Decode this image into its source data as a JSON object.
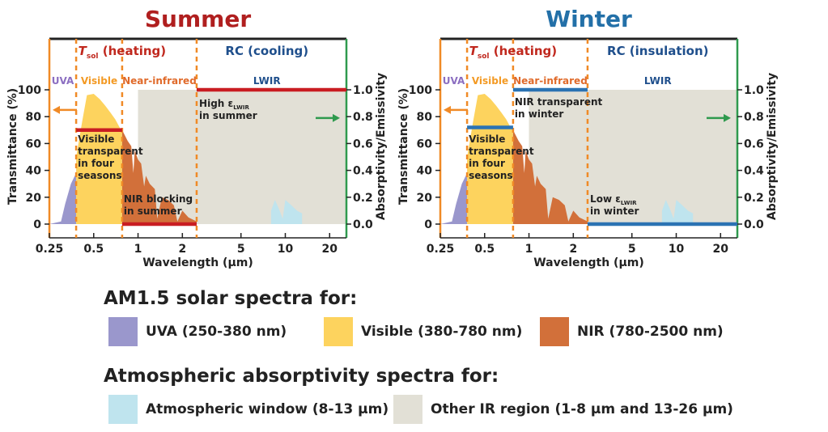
{
  "colors": {
    "uva": "#9a97cc",
    "visible": "#fdd35e",
    "nir": "#d2703a",
    "atm_window": "#bfe4ee",
    "other_ir": "#e2e0d6",
    "summer_title": "#b01f1f",
    "winter_title": "#2370a8",
    "tsol_label": "#c0281e",
    "rc_label": "#1f4f8c",
    "uva_label": "#8b6ec1",
    "visible_label": "#f39a24",
    "nir_label": "#e06a2a",
    "divider": "#f08a26",
    "right_axis": "#2f9a4e",
    "summer_line": "#c91d22",
    "winter_line": "#2b73b3"
  },
  "chart_data": [
    {
      "type": "area",
      "title": "Summer",
      "xlabel": "Wavelength (µm)",
      "ylabel": "Transmittance (%)",
      "y2label": "Absorptivity/Emissivity",
      "x_scale": "log",
      "xlim": [
        0.25,
        26
      ],
      "ylim": [
        0,
        100
      ],
      "y2lim": [
        0,
        1.0
      ],
      "x_ticks": [
        "0.25",
        "0.5",
        "1",
        "2",
        "5",
        "10",
        "20"
      ],
      "y_ticks": [
        "0",
        "20",
        "40",
        "60",
        "80",
        "100"
      ],
      "y2_ticks": [
        "0.0",
        "0.2",
        "0.4",
        "0.6",
        "0.8",
        "1.0"
      ],
      "sections": {
        "tsol": "T",
        "tsol_sub": "sol",
        "tsol_rest": "(heating)",
        "rc": "RC (cooling)"
      },
      "regions": [
        {
          "name": "UVA",
          "range": [
            0.25,
            0.38
          ]
        },
        {
          "name": "Visible",
          "range": [
            0.38,
            0.78
          ]
        },
        {
          "name": "Near-infrared",
          "range": [
            0.78,
            2.5
          ]
        },
        {
          "name": "LWIR",
          "range": [
            2.5,
            26
          ]
        }
      ],
      "series": [
        {
          "name": "UVA",
          "x": [
            0.25,
            0.3,
            0.32,
            0.35,
            0.38
          ],
          "y": [
            0,
            2,
            15,
            30,
            38
          ]
        },
        {
          "name": "Visible",
          "x": [
            0.38,
            0.42,
            0.45,
            0.5,
            0.55,
            0.6,
            0.65,
            0.7,
            0.75,
            0.78
          ],
          "y": [
            50,
            78,
            96,
            97,
            93,
            88,
            83,
            78,
            72,
            70
          ]
        },
        {
          "name": "NIR",
          "x": [
            0.78,
            0.85,
            0.9,
            0.93,
            0.95,
            1.0,
            1.05,
            1.1,
            1.13,
            1.2,
            1.3,
            1.35,
            1.45,
            1.6,
            1.75,
            1.85,
            2.0,
            2.2,
            2.5
          ],
          "y": [
            70,
            62,
            58,
            38,
            55,
            48,
            45,
            28,
            36,
            30,
            26,
            4,
            20,
            18,
            14,
            2,
            10,
            5,
            2
          ]
        },
        {
          "name": "Atmospheric window",
          "x": [
            8,
            8.5,
            9,
            9.6,
            10,
            11,
            12,
            13
          ],
          "y": [
            10,
            18,
            12,
            4,
            18,
            14,
            10,
            8
          ]
        },
        {
          "name": "Other IR region",
          "x": [
            1,
            2,
            3,
            5,
            7,
            8,
            13,
            16,
            20,
            26
          ],
          "y": [
            100,
            100,
            100,
            100,
            100,
            100,
            100,
            100,
            100,
            100
          ]
        }
      ],
      "property_lines": [
        {
          "range": [
            0.38,
            0.78
          ],
          "value": 0.7
        },
        {
          "range": [
            0.78,
            2.5
          ],
          "value": 0.0
        },
        {
          "range": [
            2.5,
            26
          ],
          "value": 1.0
        }
      ],
      "annotations": {
        "visible": [
          "Visible",
          "transparent",
          "in four",
          "seasons"
        ],
        "nir": [
          "NIR blocking",
          "in summer"
        ],
        "lwir_pre": "High ε",
        "lwir_sub": "LWIR",
        "lwir_post": "in summer"
      }
    },
    {
      "type": "area",
      "title": "Winter",
      "xlabel": "Wavelength (µm)",
      "ylabel": "Transmittance (%)",
      "y2label": "Absorptivity/Emissivity",
      "x_scale": "log",
      "xlim": [
        0.25,
        26
      ],
      "ylim": [
        0,
        100
      ],
      "y2lim": [
        0,
        1.0
      ],
      "x_ticks": [
        "0.25",
        "0.5",
        "1",
        "2",
        "5",
        "10",
        "20"
      ],
      "y_ticks": [
        "0",
        "20",
        "40",
        "60",
        "80",
        "100"
      ],
      "y2_ticks": [
        "0.0",
        "0.2",
        "0.4",
        "0.6",
        "0.8",
        "1.0"
      ],
      "sections": {
        "tsol": "T",
        "tsol_sub": "sol",
        "tsol_rest": "(heating)",
        "rc": "RC (insulation)"
      },
      "regions": [
        {
          "name": "UVA",
          "range": [
            0.25,
            0.38
          ]
        },
        {
          "name": "Visible",
          "range": [
            0.38,
            0.78
          ]
        },
        {
          "name": "Near-infrared",
          "range": [
            0.78,
            2.5
          ]
        },
        {
          "name": "LWIR",
          "range": [
            2.5,
            26
          ]
        }
      ],
      "series": [
        {
          "name": "UVA",
          "x": [
            0.25,
            0.3,
            0.32,
            0.35,
            0.38
          ],
          "y": [
            0,
            2,
            15,
            30,
            38
          ]
        },
        {
          "name": "Visible",
          "x": [
            0.38,
            0.42,
            0.45,
            0.5,
            0.55,
            0.6,
            0.65,
            0.7,
            0.75,
            0.78
          ],
          "y": [
            50,
            78,
            96,
            97,
            93,
            88,
            83,
            78,
            72,
            70
          ]
        },
        {
          "name": "NIR",
          "x": [
            0.78,
            0.85,
            0.9,
            0.93,
            0.95,
            1.0,
            1.05,
            1.1,
            1.13,
            1.2,
            1.3,
            1.35,
            1.45,
            1.6,
            1.75,
            1.85,
            2.0,
            2.2,
            2.5
          ],
          "y": [
            70,
            62,
            58,
            38,
            55,
            48,
            45,
            28,
            36,
            30,
            26,
            4,
            20,
            18,
            14,
            2,
            10,
            5,
            2
          ]
        },
        {
          "name": "Atmospheric window",
          "x": [
            8,
            8.5,
            9,
            9.6,
            10,
            11,
            12,
            13
          ],
          "y": [
            10,
            18,
            12,
            4,
            18,
            14,
            10,
            8
          ]
        },
        {
          "name": "Other IR region",
          "x": [
            1,
            2,
            3,
            5,
            7,
            8,
            13,
            16,
            20,
            26
          ],
          "y": [
            100,
            100,
            100,
            100,
            100,
            100,
            100,
            100,
            100,
            100
          ]
        }
      ],
      "property_lines": [
        {
          "range": [
            0.38,
            0.78
          ],
          "value": 0.72
        },
        {
          "range": [
            0.78,
            2.5
          ],
          "value": 1.0
        },
        {
          "range": [
            2.5,
            26
          ],
          "value": 0.0
        }
      ],
      "annotations": {
        "visible": [
          "Visible",
          "transparent",
          "in four",
          "seasons"
        ],
        "nir": [
          "NIR transparent",
          "in winter"
        ],
        "lwir_pre": "Low ε",
        "lwir_sub": "LWIR",
        "lwir_post": "in winter"
      }
    }
  ],
  "legend": {
    "solar_heading": "AM1.5 solar spectra for:",
    "solar_items": [
      "UVA (250-380 nm)",
      "Visible (380-780 nm)",
      "NIR (780-2500 nm)"
    ],
    "atm_heading": "Atmospheric absorptivity spectra for:",
    "atm_items": [
      "Atmospheric window (8-13 µm)",
      "Other IR region (1-8 µm and 13-26 µm)"
    ]
  }
}
